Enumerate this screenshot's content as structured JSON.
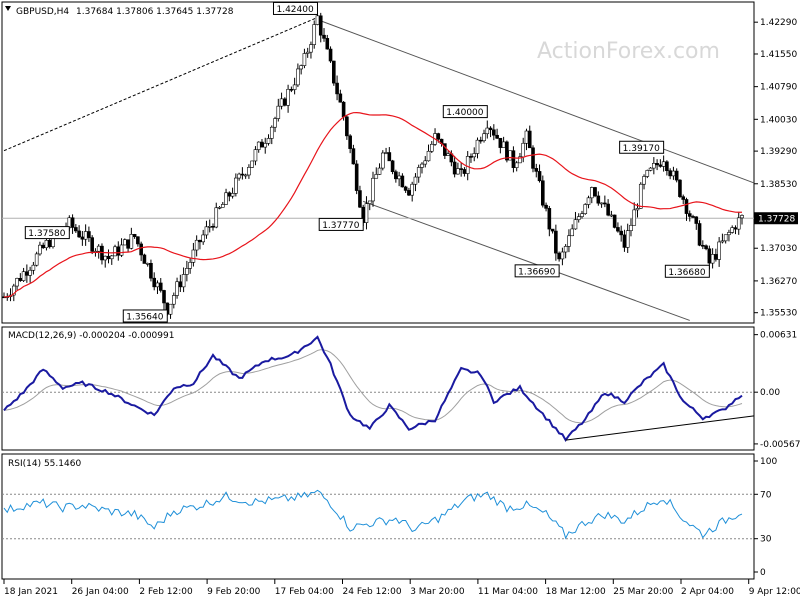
{
  "header": {
    "symbol": "GBPUSD,H4",
    "ohlc": "1.37684 1.37806 1.37645 1.37728",
    "watermark": "ActionForex.com"
  },
  "chart_data": [
    {
      "type": "candlestick",
      "name": "price",
      "yticks": [
        "1.42290",
        "1.41550",
        "1.40790",
        "1.40030",
        "1.39290",
        "1.38530",
        "1.37030",
        "1.36270",
        "1.35530"
      ],
      "ylim": [
        1.3536,
        1.4262
      ],
      "current_label": "1.37728",
      "current_value": 1.37728,
      "ma_color": "#e8141b",
      "annotations": [
        {
          "text": "1.42400",
          "t": 48,
          "value": 1.424
        },
        {
          "text": "1.37580",
          "t": 10,
          "value": 1.3758
        },
        {
          "text": "1.35640",
          "t": 25,
          "value": 1.3564
        },
        {
          "text": "1.37770",
          "t": 55,
          "value": 1.3777
        },
        {
          "text": "1.40000",
          "t": 74,
          "value": 1.4
        },
        {
          "text": "1.36690",
          "t": 85,
          "value": 1.3669
        },
        {
          "text": "1.39170",
          "t": 101,
          "value": 1.3917
        },
        {
          "text": "1.36680",
          "t": 108,
          "value": 1.3668
        }
      ],
      "path_points": [
        [
          0,
          1.359
        ],
        [
          8,
          1.374
        ],
        [
          10,
          1.3758
        ],
        [
          16,
          1.368
        ],
        [
          20,
          1.373
        ],
        [
          25,
          1.3564
        ],
        [
          30,
          1.372
        ],
        [
          35,
          1.384
        ],
        [
          40,
          1.396
        ],
        [
          46,
          1.414
        ],
        [
          48,
          1.424
        ],
        [
          52,
          1.401
        ],
        [
          55,
          1.3777
        ],
        [
          58,
          1.392
        ],
        [
          62,
          1.384
        ],
        [
          66,
          1.396
        ],
        [
          70,
          1.387
        ],
        [
          74,
          1.4
        ],
        [
          78,
          1.39
        ],
        [
          80,
          1.396
        ],
        [
          85,
          1.3669
        ],
        [
          90,
          1.385
        ],
        [
          95,
          1.371
        ],
        [
          98,
          1.386
        ],
        [
          101,
          1.3917
        ],
        [
          104,
          1.382
        ],
        [
          108,
          1.3668
        ],
        [
          112,
          1.376
        ],
        [
          113,
          1.37728
        ]
      ]
    },
    {
      "type": "line",
      "name": "macd",
      "label": "MACD(12,26,9) -0.000204 -0.000991",
      "yticks": [
        "0.00631",
        "0.00",
        "-0.005671"
      ],
      "ylim": [
        -0.0059,
        0.0066
      ],
      "macd_color": "#1a1aa0",
      "signal_color": "#a0a0a0",
      "macd_points": [
        [
          0,
          -0.002
        ],
        [
          3,
          0.0
        ],
        [
          6,
          0.0025
        ],
        [
          9,
          0.0005
        ],
        [
          12,
          0.001
        ],
        [
          16,
          0.0
        ],
        [
          20,
          -0.0015
        ],
        [
          23,
          -0.0025
        ],
        [
          26,
          0.0005
        ],
        [
          29,
          0.001
        ],
        [
          32,
          0.004
        ],
        [
          36,
          0.0015
        ],
        [
          40,
          0.0035
        ],
        [
          44,
          0.004
        ],
        [
          48,
          0.006
        ],
        [
          50,
          0.003
        ],
        [
          53,
          -0.0025
        ],
        [
          56,
          -0.004
        ],
        [
          59,
          -0.0015
        ],
        [
          62,
          -0.004
        ],
        [
          66,
          -0.003
        ],
        [
          70,
          0.0025
        ],
        [
          73,
          0.002
        ],
        [
          75,
          -0.001
        ],
        [
          79,
          0.0005
        ],
        [
          82,
          -0.002
        ],
        [
          86,
          -0.0052
        ],
        [
          89,
          -0.003
        ],
        [
          92,
          0.0
        ],
        [
          95,
          -0.001
        ],
        [
          98,
          0.0012
        ],
        [
          101,
          0.003
        ],
        [
          104,
          -0.001
        ],
        [
          107,
          -0.0028
        ],
        [
          110,
          -0.002
        ],
        [
          113,
          -0.0002
        ]
      ],
      "trendline": [
        [
          86,
          -0.00525
        ],
        [
          113,
          -0.0026
        ]
      ]
    },
    {
      "type": "line",
      "name": "rsi",
      "label": "RSI(14) 55.1460",
      "yticks": [
        "100",
        "70",
        "30",
        "0"
      ],
      "ylim": [
        0,
        100
      ],
      "levels": [
        70,
        30
      ],
      "line_color": "#1e8fd8",
      "points": [
        [
          0,
          55
        ],
        [
          3,
          60
        ],
        [
          6,
          62
        ],
        [
          9,
          58
        ],
        [
          12,
          60
        ],
        [
          16,
          55
        ],
        [
          20,
          52
        ],
        [
          23,
          40
        ],
        [
          26,
          55
        ],
        [
          30,
          60
        ],
        [
          34,
          68
        ],
        [
          38,
          63
        ],
        [
          42,
          65
        ],
        [
          46,
          68
        ],
        [
          48,
          72
        ],
        [
          50,
          62
        ],
        [
          53,
          40
        ],
        [
          57,
          45
        ],
        [
          60,
          48
        ],
        [
          63,
          38
        ],
        [
          67,
          50
        ],
        [
          71,
          66
        ],
        [
          74,
          70
        ],
        [
          77,
          58
        ],
        [
          80,
          60
        ],
        [
          83,
          52
        ],
        [
          86,
          33
        ],
        [
          89,
          45
        ],
        [
          92,
          52
        ],
        [
          95,
          46
        ],
        [
          98,
          58
        ],
        [
          101,
          68
        ],
        [
          104,
          48
        ],
        [
          107,
          34
        ],
        [
          110,
          45
        ],
        [
          113,
          55
        ]
      ]
    }
  ],
  "time_axis": {
    "labels": [
      "18 Jan 2021",
      "26 Jan 04:00",
      "2 Feb 12:00",
      "9 Feb 20:00",
      "17 Feb 04:00",
      "24 Feb 12:00",
      "3 Mar 20:00",
      "11 Mar 04:00",
      "18 Mar 12:00",
      "25 Mar 20:00",
      "2 Apr 04:00",
      "9 Apr 12:00"
    ]
  }
}
